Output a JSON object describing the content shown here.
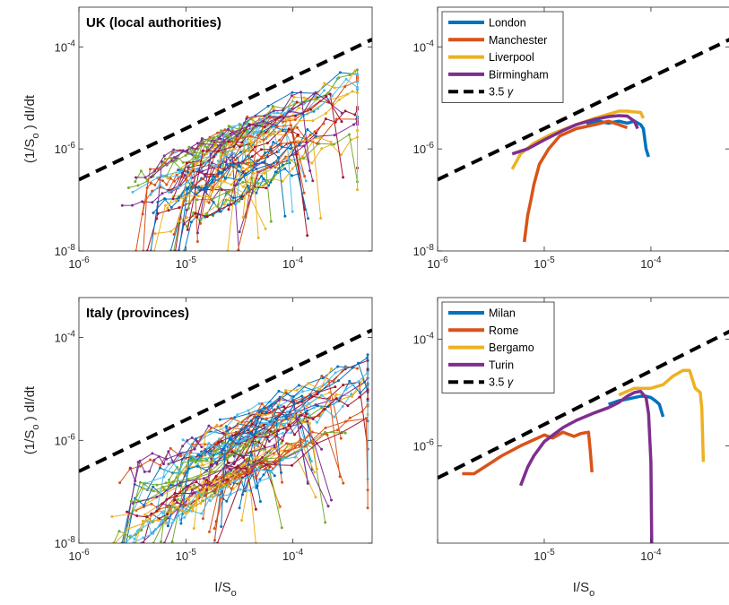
{
  "colors": {
    "blue": "#0072BD",
    "orange": "#D95319",
    "yellow": "#EDB120",
    "purple": "#7E2F8E",
    "green": "#77AC30",
    "cyan": "#4DBEEE",
    "red": "#A2142F",
    "dashed": "#000000"
  },
  "chart_data": [
    {
      "id": "uk-all",
      "type": "line",
      "title": "UK (local authorities)",
      "xlabel": "",
      "ylabel": "(1/S_o ) dI/dt",
      "xscale": "log",
      "yscale": "log",
      "xlim": [
        1e-06,
        0.00055
      ],
      "ylim": [
        1e-08,
        0.0006
      ],
      "xticks": [
        "10^-6",
        "10^-5",
        "10^-4"
      ],
      "yticks": [
        "10^-8",
        "10^-6",
        "10^-4"
      ],
      "reference_line": {
        "label": "3.5 γ",
        "points": [
          [
            1e-06,
            2.5e-07
          ],
          [
            0.00055,
            0.00014
          ]
        ]
      },
      "many_series": {
        "count": 60,
        "x_range": [
          2.5e-06,
          0.0004
        ],
        "y_range": [
          1e-08,
          3e-05
        ],
        "marker": "dot"
      }
    },
    {
      "id": "uk-cities",
      "type": "line",
      "xscale": "log",
      "yscale": "log",
      "xlim": [
        1e-06,
        0.00055
      ],
      "ylim": [
        1e-08,
        0.0006
      ],
      "xticks": [
        "10^-6",
        "10^-5",
        "10^-4"
      ],
      "yticks": [
        "10^-8",
        "10^-6",
        "10^-4"
      ],
      "legend": "top-left",
      "reference_line": {
        "label": "3.5 γ",
        "points": [
          [
            1e-06,
            2.5e-07
          ],
          [
            0.00055,
            0.00014
          ]
        ]
      },
      "series": [
        {
          "name": "London",
          "color": "blue",
          "x": [
            2.5e-05,
            3.2e-05,
            4e-05,
            5e-05,
            6e-05,
            7e-05,
            8e-05,
            8.5e-05,
            9e-05,
            9.5e-05
          ],
          "y": [
            3e-06,
            3.5e-06,
            3.2e-06,
            3.5e-06,
            3.2e-06,
            3.5e-06,
            3e-06,
            2.5e-06,
            1e-06,
            7e-07
          ]
        },
        {
          "name": "Manchester",
          "color": "orange",
          "x": [
            6.5e-06,
            7e-06,
            7.5e-06,
            8e-06,
            9e-06,
            1.1e-05,
            1.4e-05,
            2e-05,
            3e-05,
            4e-05,
            5e-05,
            6e-05
          ],
          "y": [
            1.5e-08,
            5e-08,
            1e-07,
            2e-07,
            5e-07,
            1e-06,
            1.8e-06,
            2.5e-06,
            3e-06,
            3.5e-06,
            3e-06,
            2.6e-06
          ]
        },
        {
          "name": "Liverpool",
          "color": "yellow",
          "x": [
            5e-06,
            6e-06,
            8e-06,
            1.2e-05,
            2e-05,
            3e-05,
            4e-05,
            5e-05,
            6e-05,
            7e-05,
            8e-05,
            8.5e-05
          ],
          "y": [
            4e-07,
            8e-07,
            1.3e-06,
            2e-06,
            3e-06,
            4e-06,
            4.8e-06,
            5.5e-06,
            5.5e-06,
            5.3e-06,
            5.2e-06,
            4e-06
          ]
        },
        {
          "name": "Birmingham",
          "color": "purple",
          "x": [
            5e-06,
            7e-06,
            1e-05,
            1.5e-05,
            2e-05,
            3e-05,
            4e-05,
            5e-05,
            6e-05,
            7e-05,
            7.5e-05
          ],
          "y": [
            8e-07,
            1e-06,
            1.5e-06,
            2.3e-06,
            3e-06,
            3.8e-06,
            4.3e-06,
            4.5e-06,
            4.4e-06,
            3.5e-06,
            2.5e-06
          ]
        }
      ],
      "legend_entries": [
        "London",
        "Manchester",
        "Liverpool",
        "Birmingham",
        "3.5 γ"
      ]
    },
    {
      "id": "italy-all",
      "type": "line",
      "title": "Italy (provinces)",
      "xlabel": "I/S_o",
      "ylabel": "(1/S_o ) dI/dt",
      "xscale": "log",
      "yscale": "log",
      "xlim": [
        1e-06,
        0.00055
      ],
      "ylim": [
        1e-08,
        0.0006
      ],
      "xticks": [
        "10^-6",
        "10^-5",
        "10^-4"
      ],
      "yticks": [
        "10^-8",
        "10^-6",
        "10^-4"
      ],
      "reference_line": {
        "label": "3.5 γ",
        "points": [
          [
            1e-06,
            2.5e-07
          ],
          [
            0.00055,
            0.00014
          ]
        ]
      },
      "many_series": {
        "count": 70,
        "x_range": [
          2e-06,
          0.0005
        ],
        "y_range": [
          1e-08,
          8e-05
        ],
        "marker": "dot"
      }
    },
    {
      "id": "italy-cities",
      "type": "line",
      "xlabel": "I/S_o",
      "xscale": "log",
      "yscale": "log",
      "xlim": [
        1e-06,
        0.00055
      ],
      "ylim": [
        1e-08,
        0.0006
      ],
      "xticks": [
        "10^-5",
        "10^-4"
      ],
      "yticks": [
        "10^-6",
        "10^-4"
      ],
      "legend": "top-left",
      "reference_line": {
        "label": "3.5 γ",
        "points": [
          [
            1e-06,
            2.5e-07
          ],
          [
            0.00055,
            0.00014
          ]
        ]
      },
      "series": [
        {
          "name": "Milan",
          "color": "blue",
          "x": [
            4e-05,
            5e-05,
            6e-05,
            7e-05,
            8e-05,
            9e-05,
            0.0001,
            0.00011,
            0.00012,
            0.00013
          ],
          "y": [
            6e-06,
            7e-06,
            7.5e-06,
            8e-06,
            8.5e-06,
            8.5e-06,
            8e-06,
            7e-06,
            6e-06,
            3.5e-06
          ]
        },
        {
          "name": "Rome",
          "color": "orange",
          "x": [
            1.7e-06,
            2.2e-06,
            3e-06,
            4e-06,
            6e-06,
            8e-06,
            1e-05,
            1.2e-05,
            1.5e-05,
            1.9e-05,
            2.2e-05,
            2.6e-05,
            2.7e-05,
            2.8e-05
          ],
          "y": [
            3e-07,
            3e-07,
            4.5e-07,
            6.5e-07,
            1e-06,
            1.3e-06,
            1.6e-06,
            1.4e-06,
            1.8e-06,
            1.5e-06,
            1.7e-06,
            1.8e-06,
            8e-07,
            3.2e-07
          ]
        },
        {
          "name": "Bergamo",
          "color": "yellow",
          "x": [
            5e-05,
            7e-05,
            0.0001,
            0.00013,
            0.00016,
            0.0002,
            0.00023,
            0.00026,
            0.00029,
            0.0003,
            0.00031
          ],
          "y": [
            9e-06,
            1.2e-05,
            1.2e-05,
            1.4e-05,
            2e-05,
            2.6e-05,
            2.6e-05,
            1.2e-05,
            1e-05,
            5e-06,
            5e-07
          ]
        },
        {
          "name": "Turin",
          "color": "purple",
          "x": [
            6e-06,
            7e-06,
            8e-06,
            1e-05,
            1.5e-05,
            2e-05,
            3e-05,
            4e-05,
            5e-05,
            6e-05,
            7e-05,
            8e-05,
            9e-05,
            9.5e-05,
            0.0001,
            0.000102
          ],
          "y": [
            1.8e-07,
            4e-07,
            6.5e-07,
            1.2e-06,
            2.2e-06,
            3e-06,
            4.2e-06,
            5.2e-06,
            6.5e-06,
            8.5e-06,
            1e-05,
            1.05e-05,
            8e-06,
            4e-06,
            5e-07,
            1.1e-08
          ]
        }
      ],
      "legend_entries": [
        "Milan",
        "Rome",
        "Bergamo",
        "Turin",
        "3.5 γ"
      ]
    }
  ],
  "ui": {
    "panel_titles": {
      "uk": "UK (local authorities)",
      "italy": "Italy (provinces)"
    },
    "ylabel": "(1/S_o ) dI/dt",
    "xlabel": "I/S_o",
    "legend_ref_label": "3.5 γ"
  }
}
